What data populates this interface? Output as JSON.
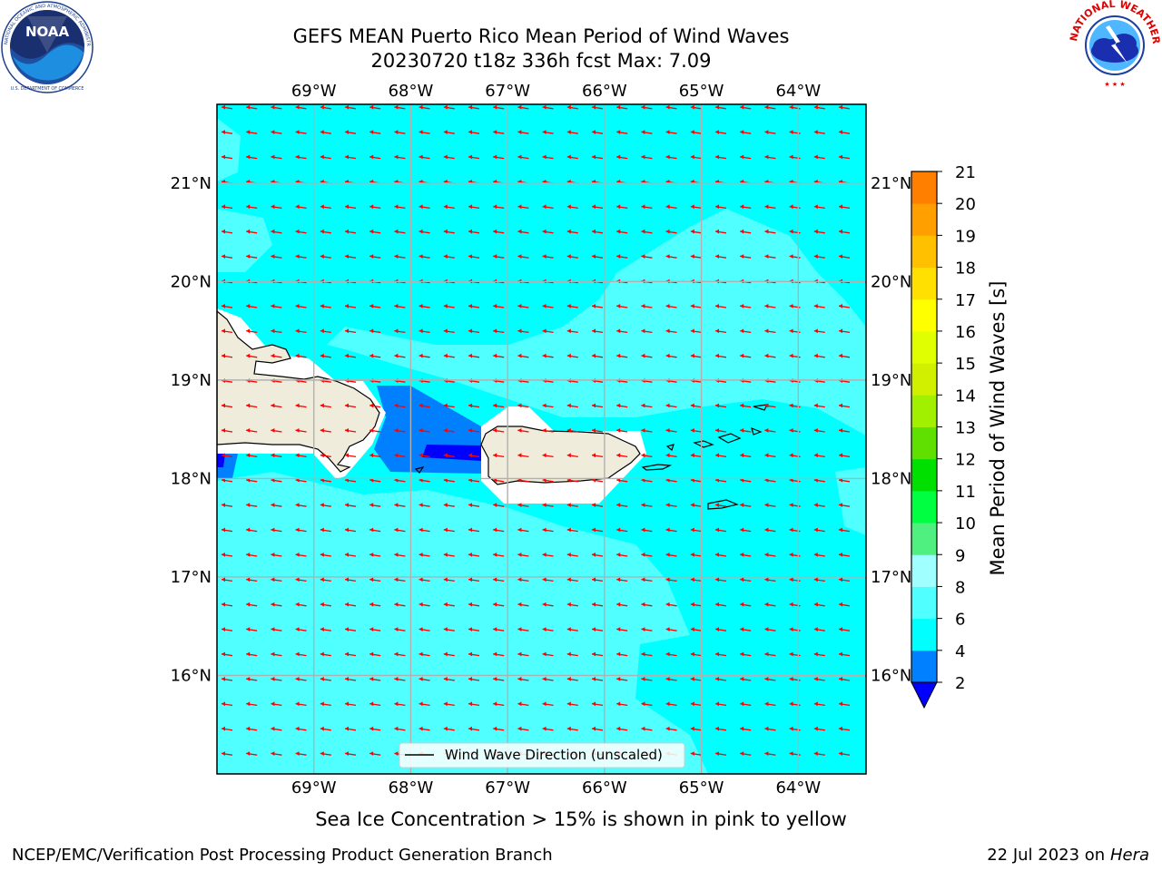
{
  "header": {
    "title_line1": "GEFS MEAN Puerto Rico Mean Period of Wind Waves",
    "title_line2": "20230720 t18z 336h fcst   Max: 7.09"
  },
  "logos": {
    "left": {
      "text": "NOAA",
      "ring_text": "NATIONAL OCEANIC AND ATMOSPHERIC ADMINISTRATION",
      "bottom_text": "U.S. DEPARTMENT OF COMMERCE"
    },
    "right": {
      "ring_text": "NATIONAL WEATHER SERVICE"
    }
  },
  "map": {
    "lon_labels": [
      "69°W",
      "68°W",
      "67°W",
      "66°W",
      "65°W",
      "64°W"
    ],
    "lat_labels": [
      "21°N",
      "20°N",
      "19°N",
      "18°N",
      "17°N",
      "16°N"
    ],
    "lon_range": [
      -70.0,
      -63.3
    ],
    "lat_range": [
      15.0,
      21.8
    ],
    "legend_label": "Wind Wave Direction (unscaled)",
    "arrow_color": "#ff0000",
    "land_color": "#efecdc",
    "colors": {
      "level_2_4": "#0080ff",
      "level_4_6": "#00ffff",
      "level_6_8": "#50ffff",
      "level_below_2": "#0000ff"
    }
  },
  "colorbar": {
    "label": "Mean Period of Wind Waves [s]",
    "ticks": [
      "21",
      "20",
      "19",
      "18",
      "17",
      "16",
      "15",
      "14",
      "13",
      "12",
      "11",
      "10",
      "9",
      "8",
      "6",
      "4",
      "2"
    ],
    "colors": [
      "#0000ff",
      "#0080ff",
      "#00ffff",
      "#50ffff",
      "#a0ffff",
      "#50f080",
      "#00ff40",
      "#00e000",
      "#60e000",
      "#a0f000",
      "#d0f000",
      "#e0ff00",
      "#ffff00",
      "#ffe000",
      "#ffc000",
      "#ffa000",
      "#ff8000",
      "#ff6000",
      "#ff4000",
      "#ff0000"
    ]
  },
  "subtitle": "Sea Ice Concentration > 15% is shown in pink to yellow",
  "footer": {
    "left": "NCEP/EMC/Verification Post Processing Product Generation Branch",
    "right_date": "22 Jul 2023 on",
    "right_host": "Hera"
  }
}
